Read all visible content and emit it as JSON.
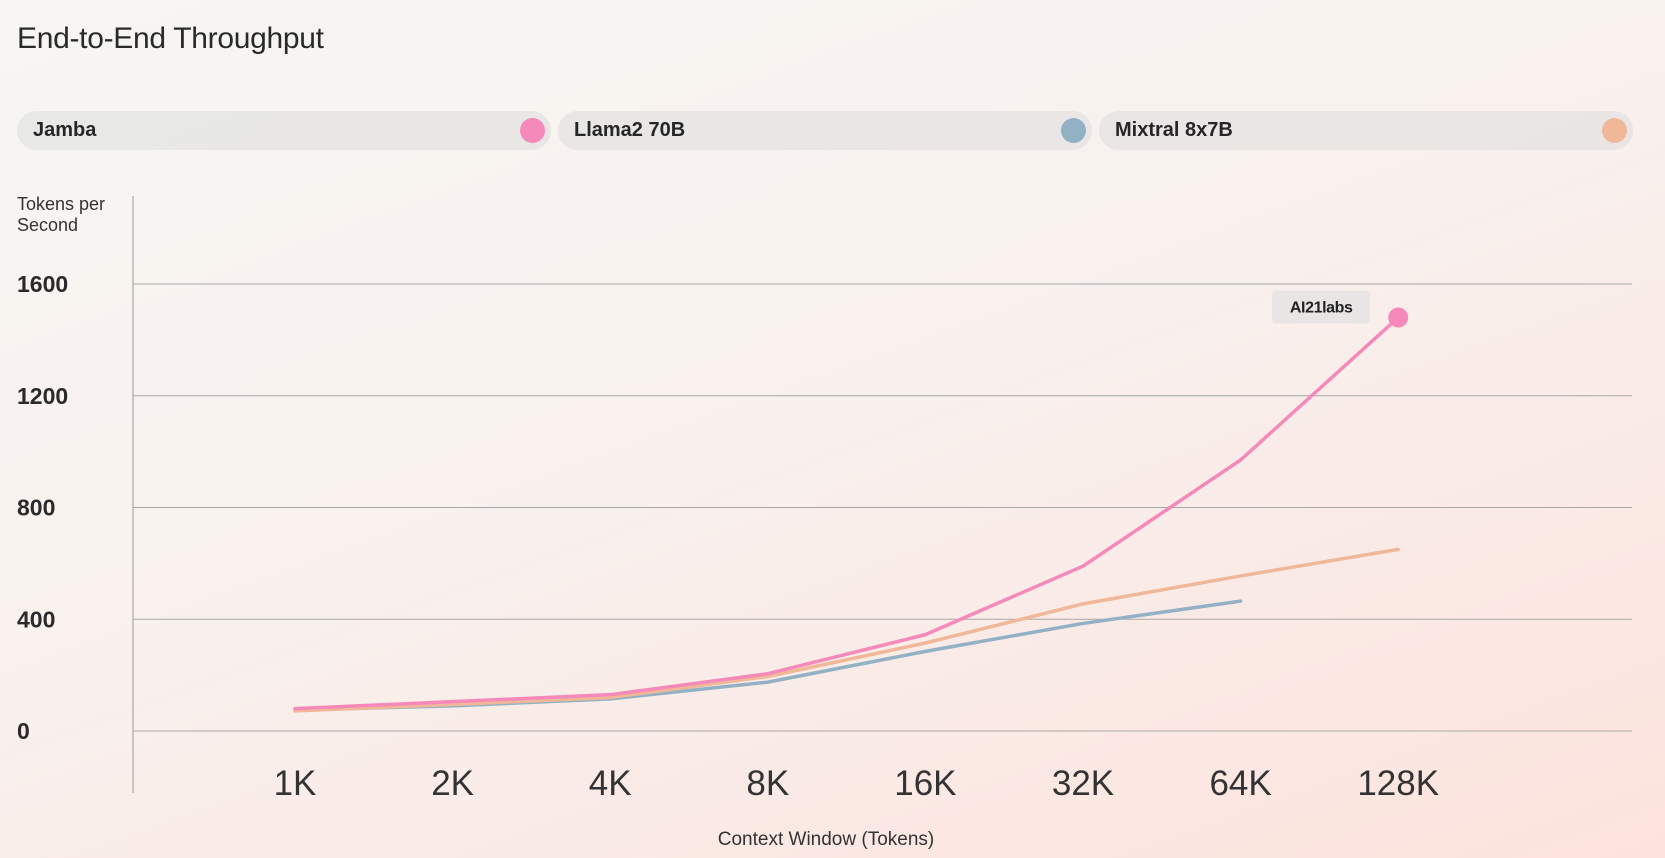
{
  "title": "End-to-End Throughput",
  "legend": [
    {
      "label": "Jamba",
      "color": "#f589ba"
    },
    {
      "label": "Llama2 70B",
      "color": "#93b1c5"
    },
    {
      "label": "Mixtral 8x7B",
      "color": "#f0b898"
    }
  ],
  "badge": "AI21labs",
  "chart_data": {
    "type": "line",
    "ylabel": [
      "Tokens per",
      "Second"
    ],
    "xlabel": "Context Window (Tokens)",
    "categories": [
      "1K",
      "2K",
      "4K",
      "8K",
      "16K",
      "32K",
      "64K",
      "128K"
    ],
    "yticks": [
      "0",
      "400",
      "800",
      "1200",
      "1600"
    ],
    "ylim": [
      0,
      1600
    ],
    "grid": true,
    "series": [
      {
        "name": "Jamba",
        "color": "#f589ba",
        "values": [
          80,
          105,
          130,
          205,
          345,
          590,
          970,
          1480
        ]
      },
      {
        "name": "Llama2 70B",
        "color": "#93b1c5",
        "values": [
          75,
          90,
          115,
          175,
          285,
          385,
          465,
          null
        ]
      },
      {
        "name": "Mixtral 8x7B",
        "color": "#f0b898",
        "values": [
          72,
          95,
          120,
          195,
          315,
          455,
          555,
          650
        ]
      }
    ]
  }
}
